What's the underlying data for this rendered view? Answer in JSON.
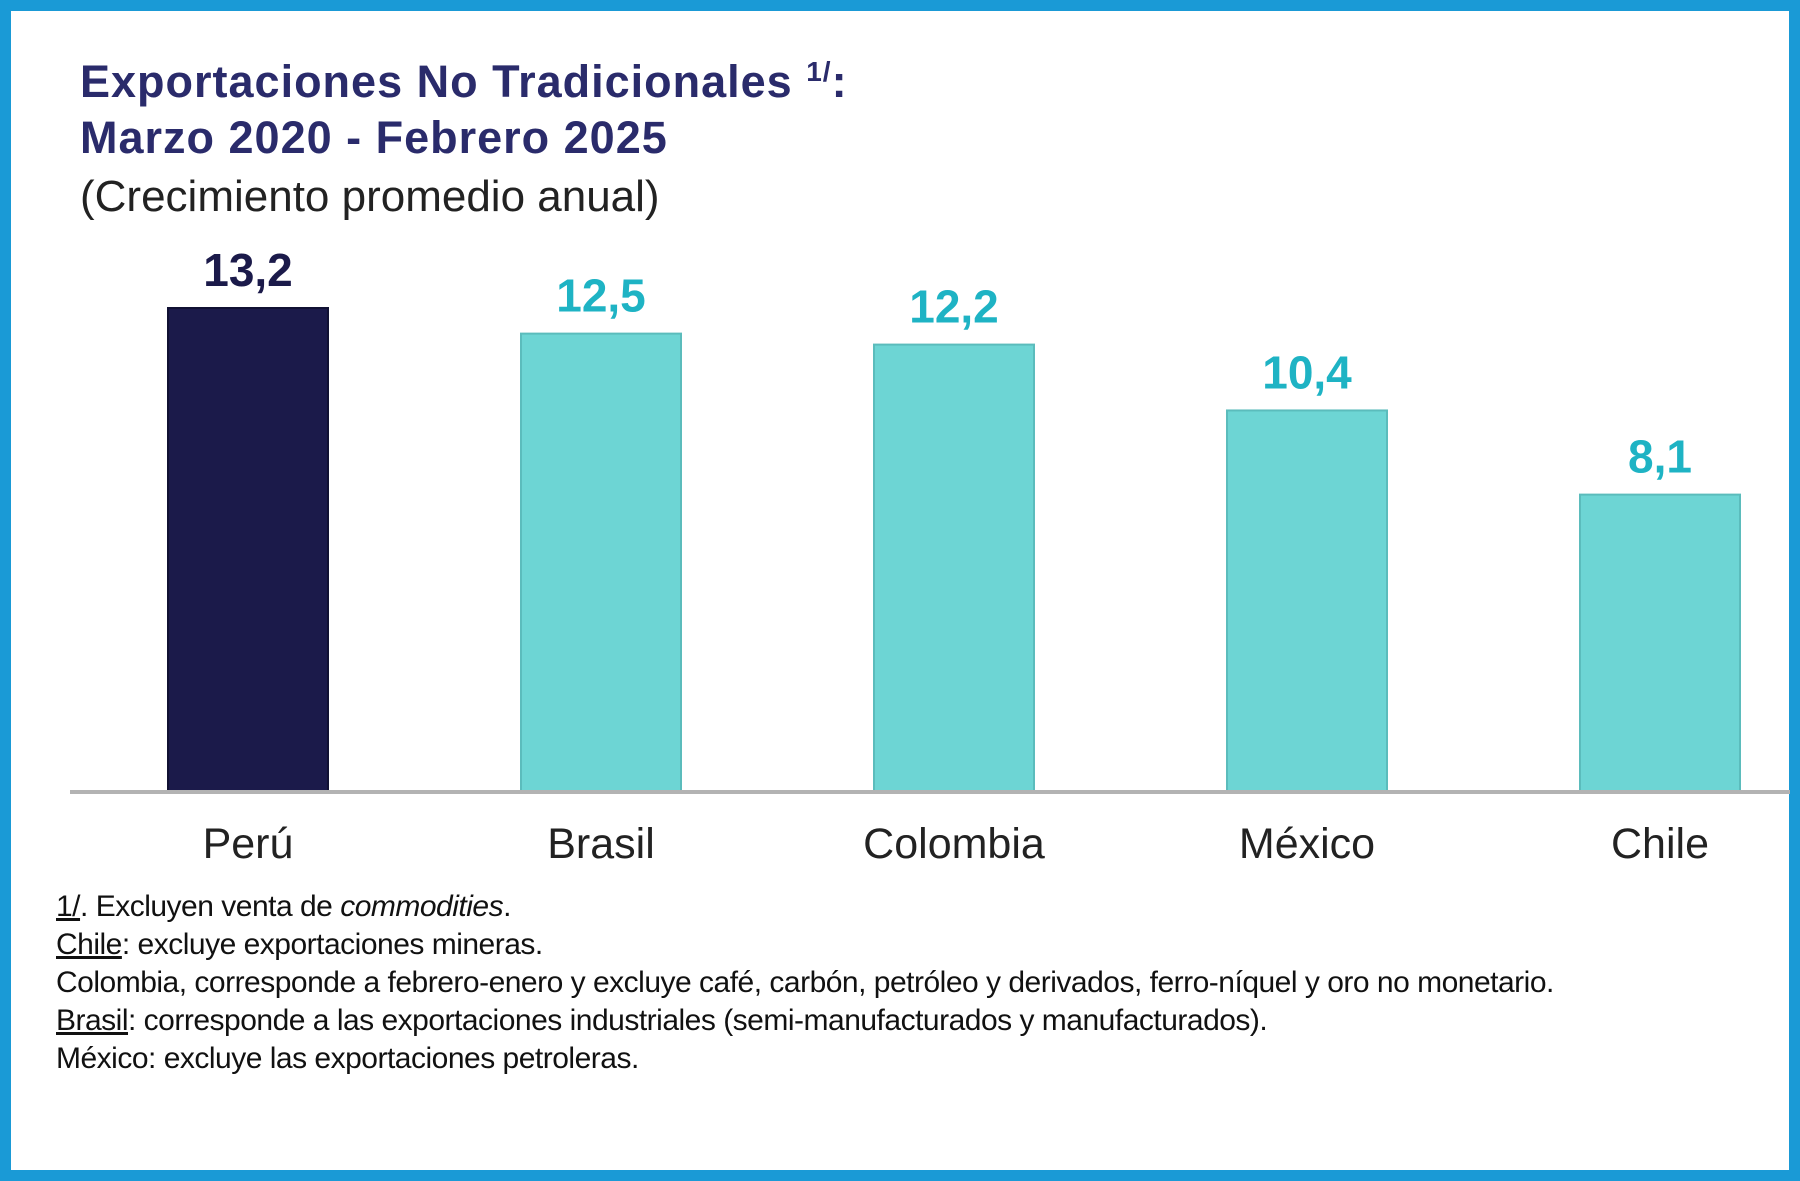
{
  "colors": {
    "frame": "#1a9ad6",
    "title": "#2a2b6b",
    "highlight_bar": "#1b1a4a",
    "bar": "#6dd5d4",
    "highlight_label": "#1b1a4a",
    "label": "#1eb3c4",
    "baseline": "#b3b3b3"
  },
  "heading": {
    "title_line1": "Exportaciones No Tradicionales",
    "title_marker": "1/",
    "title_colon": ":",
    "title_line2": "Marzo 2020 - Febrero 2025",
    "subtitle": "(Crecimiento promedio anual)"
  },
  "chart_data": {
    "type": "bar",
    "title": "Exportaciones No Tradicionales 1/: Marzo 2020 - Febrero 2025",
    "subtitle": "(Crecimiento promedio anual)",
    "categories": [
      "Perú",
      "Brasil",
      "Colombia",
      "México",
      "Chile"
    ],
    "values": [
      13.2,
      12.5,
      12.2,
      10.4,
      8.1
    ],
    "value_labels": [
      "13,2",
      "12,5",
      "12,2",
      "10,4",
      "8,1"
    ],
    "highlight_index": 0,
    "ylim": [
      0,
      13.2
    ],
    "grid": false,
    "legend": "none"
  },
  "notes": {
    "n1_marker": "1/",
    "n1_text": ". Excluyen venta de ",
    "n1_italic": "commodities",
    "n1_end": ".",
    "chile_label": "Chile",
    "chile_text": ": excluye exportaciones mineras.",
    "colombia_text": "Colombia, corresponde a febrero-enero y excluye café, carbón, petróleo y derivados, ferro-níquel y oro no monetario.",
    "brasil_label": "Brasil",
    "brasil_text": ": corresponde a las exportaciones industriales (semi-manufacturados y manufacturados).",
    "mexico_text": "México: excluye las exportaciones petroleras."
  }
}
